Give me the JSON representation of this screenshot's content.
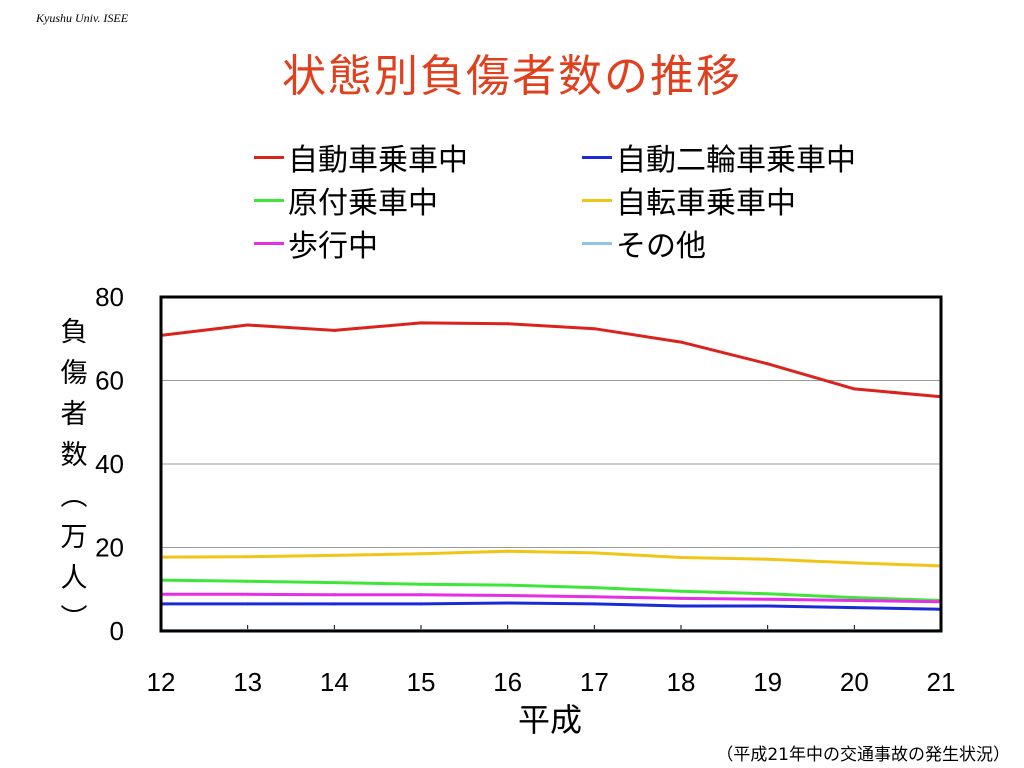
{
  "header": {
    "credit": "Kyushu Univ. ISEE"
  },
  "slide": {
    "title": "状態別負傷者数の推移",
    "source_note": "（平成21年中の交通事故の発生状況）"
  },
  "colors": {
    "title": "#e0401e",
    "car": "#d9231c",
    "moto": "#1a2ad6",
    "moped": "#3ee63a",
    "bicycle": "#f2c418",
    "pedestrian": "#e62ee6",
    "other": "#8fc3ea"
  },
  "chart_data": {
    "type": "line",
    "title": "状態別負傷者数の推移",
    "xlabel": "平成",
    "ylabel": "負傷者数（万人）",
    "ylabel_chars": [
      "負",
      "傷",
      "者",
      "数",
      "︵",
      "万",
      "人",
      "︶"
    ],
    "categories": [
      "12",
      "13",
      "14",
      "15",
      "16",
      "17",
      "18",
      "19",
      "20",
      "21"
    ],
    "ylim": [
      0,
      80
    ],
    "yticks": [
      "0",
      "20",
      "40",
      "60",
      "80"
    ],
    "grid": true,
    "legend_position": "top",
    "series": [
      {
        "name": "自動車乗車中",
        "color": "#d9231c",
        "values": [
          70.8,
          73.3,
          72.0,
          73.8,
          73.6,
          72.4,
          69.2,
          64.0,
          58.0,
          56.1
        ]
      },
      {
        "name": "自動二輪車乗車中",
        "color": "#1a2ad6",
        "values": [
          6.5,
          6.5,
          6.5,
          6.5,
          6.7,
          6.5,
          6.0,
          6.0,
          5.6,
          5.2
        ]
      },
      {
        "name": "原付乗車中",
        "color": "#3ee63a",
        "values": [
          12.2,
          11.9,
          11.6,
          11.2,
          11.0,
          10.4,
          9.5,
          8.9,
          8.0,
          7.3
        ]
      },
      {
        "name": "自転車乗車中",
        "color": "#f2c418",
        "values": [
          17.7,
          17.8,
          18.1,
          18.5,
          19.1,
          18.7,
          17.6,
          17.2,
          16.3,
          15.6
        ]
      },
      {
        "name": "歩行中",
        "color": "#e62ee6",
        "values": [
          8.8,
          8.8,
          8.7,
          8.7,
          8.5,
          8.2,
          7.8,
          7.6,
          7.3,
          7.0
        ]
      },
      {
        "name": "その他",
        "color": "#8fc3ea",
        "values": [
          0.1,
          0.1,
          0.1,
          0.1,
          0.1,
          0.1,
          0.1,
          0.1,
          0.1,
          0.1
        ]
      }
    ]
  }
}
